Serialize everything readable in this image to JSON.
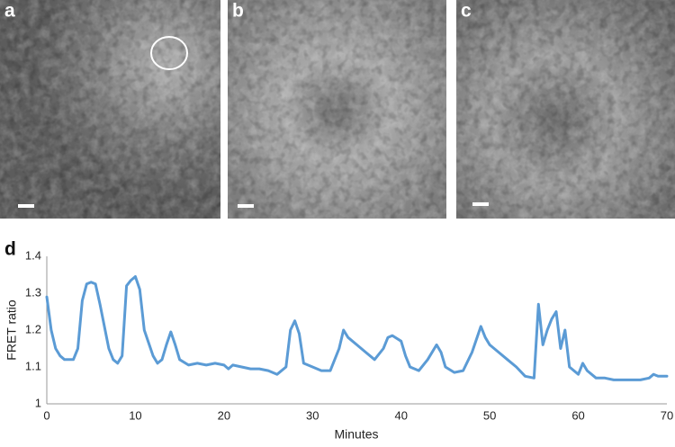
{
  "panel_labels": {
    "a": "a",
    "b": "b",
    "c": "c",
    "d": "d"
  },
  "chart_data": {
    "type": "line",
    "x_label": "Minutes",
    "y_label": "FRET ratio",
    "xlim": [
      0,
      70
    ],
    "ylim": [
      1,
      1.4
    ],
    "xticks": [
      0,
      10,
      20,
      30,
      40,
      50,
      60,
      70
    ],
    "yticks": [
      1,
      1.1,
      1.2,
      1.3,
      1.4
    ],
    "grid": false,
    "series": [
      {
        "name": "FRET ratio",
        "color": "#5b9bd5",
        "x": [
          0,
          0.5,
          1,
          1.5,
          2,
          3,
          3.5,
          4,
          4.5,
          5,
          5.5,
          6,
          7,
          7.5,
          8,
          8.5,
          9,
          9.5,
          10,
          10.5,
          11,
          12,
          12.5,
          13,
          13.5,
          14,
          14.5,
          15,
          16,
          17,
          18,
          19,
          20,
          20.5,
          21,
          22,
          23,
          24,
          25,
          26,
          27,
          27.5,
          28,
          28.5,
          29,
          30,
          31,
          32,
          33,
          33.5,
          34,
          35,
          36,
          37,
          38,
          38.5,
          39,
          40,
          40.5,
          41,
          42,
          43,
          44,
          44.5,
          45,
          46,
          47,
          48,
          49,
          49.5,
          50,
          51,
          52,
          53,
          54,
          55,
          55.5,
          56,
          56.5,
          57,
          57.5,
          58,
          58.5,
          59,
          60,
          60.5,
          61,
          62,
          63,
          64,
          65,
          66,
          67,
          68,
          68.5,
          69,
          70
        ],
        "values": [
          1.29,
          1.2,
          1.15,
          1.13,
          1.12,
          1.12,
          1.15,
          1.28,
          1.325,
          1.33,
          1.325,
          1.27,
          1.15,
          1.12,
          1.11,
          1.13,
          1.32,
          1.335,
          1.345,
          1.31,
          1.2,
          1.13,
          1.11,
          1.12,
          1.16,
          1.195,
          1.16,
          1.12,
          1.105,
          1.11,
          1.105,
          1.11,
          1.105,
          1.095,
          1.105,
          1.1,
          1.095,
          1.095,
          1.09,
          1.08,
          1.1,
          1.2,
          1.225,
          1.19,
          1.11,
          1.1,
          1.09,
          1.09,
          1.15,
          1.2,
          1.18,
          1.16,
          1.14,
          1.12,
          1.15,
          1.18,
          1.185,
          1.17,
          1.13,
          1.1,
          1.09,
          1.12,
          1.16,
          1.14,
          1.1,
          1.085,
          1.09,
          1.14,
          1.21,
          1.18,
          1.16,
          1.14,
          1.12,
          1.1,
          1.075,
          1.07,
          1.27,
          1.16,
          1.2,
          1.23,
          1.25,
          1.15,
          1.2,
          1.1,
          1.08,
          1.11,
          1.09,
          1.07,
          1.07,
          1.065,
          1.065,
          1.065,
          1.065,
          1.07,
          1.08,
          1.075,
          1.075
        ]
      }
    ]
  }
}
